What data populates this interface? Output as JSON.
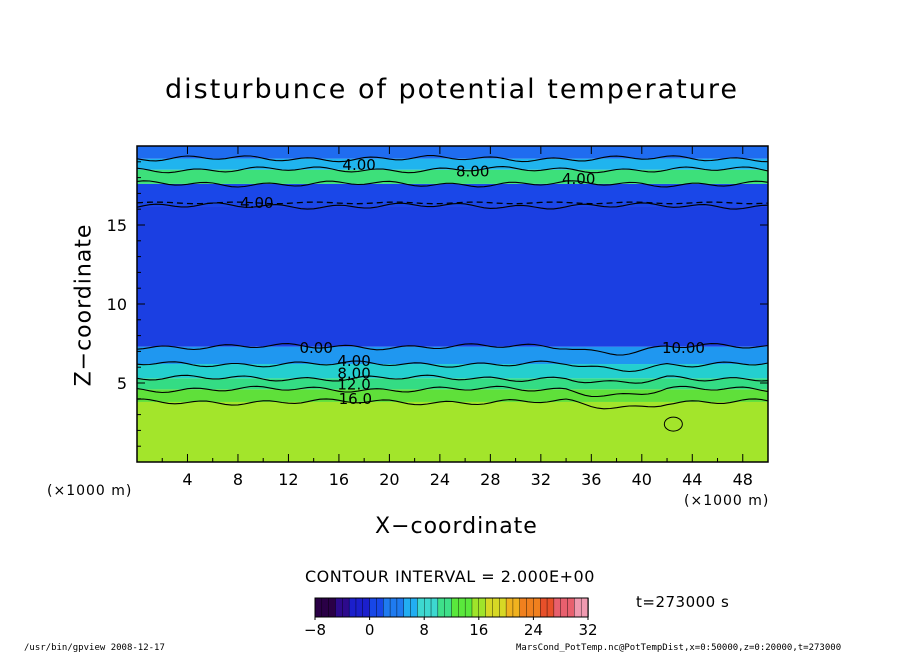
{
  "chart_data": {
    "type": "heatmap",
    "title": "disturbunce of potential temperature",
    "xlabel": "X−coordinate",
    "ylabel": "Z−coordinate",
    "x_unit_label": "(×1000 m)",
    "z_unit_label": "(×1000 m)",
    "xlim": [
      0,
      50
    ],
    "ylim": [
      0,
      20
    ],
    "x_ticks": [
      4,
      8,
      12,
      16,
      20,
      24,
      28,
      32,
      36,
      40,
      44,
      48
    ],
    "y_ticks": [
      5,
      10,
      15
    ],
    "contour_interval_text": "CONTOUR INTERVAL = 2.000E+00",
    "contour_labels": [
      "4.00",
      "8.00",
      "4.00",
      "4.00",
      "0.00",
      "4.00",
      "8.00",
      "12.0",
      "16.0",
      "10.00"
    ],
    "colorbar": {
      "min": -8,
      "max": 32,
      "ticks": [
        "−8",
        "0",
        "8",
        "16",
        "24",
        "32"
      ],
      "colors": [
        "#2a0046",
        "#2d0a8c",
        "#1b1fcc",
        "#1747e8",
        "#1f7bf0",
        "#22aef2",
        "#3dd8d0",
        "#3ee08a",
        "#5ae83c",
        "#9fe42a",
        "#d7d825",
        "#f0b21f",
        "#f0801e",
        "#e8502a",
        "#e8606e",
        "#f09ab0"
      ]
    },
    "layers": [
      {
        "z_range": [
          0,
          3.8
        ],
        "value": 20,
        "color": "#a3e52b"
      },
      {
        "z_range": [
          3.8,
          4.6
        ],
        "value": 16,
        "color": "#5fe03a"
      },
      {
        "z_range": [
          4.6,
          5.3
        ],
        "value": 12,
        "color": "#34dc84"
      },
      {
        "z_range": [
          5.3,
          6.2
        ],
        "value": 8,
        "color": "#24cfcf"
      },
      {
        "z_range": [
          6.2,
          7.3
        ],
        "value": 4,
        "color": "#1f97f0"
      },
      {
        "z_range": [
          7.3,
          16.2
        ],
        "value": -2,
        "color": "#1b3fe2"
      },
      {
        "z_range": [
          16.2,
          17.6
        ],
        "value": 0,
        "color": "#1a47e8"
      },
      {
        "z_range": [
          17.6,
          18.5
        ],
        "value": 8,
        "color": "#3de07a"
      },
      {
        "z_range": [
          18.5,
          19.2
        ],
        "value": 4,
        "color": "#20b4ee"
      },
      {
        "z_range": [
          19.2,
          20
        ],
        "value": 0,
        "color": "#1f6cf0"
      }
    ],
    "time_label": "t=273000 s",
    "footer_left": "/usr/bin/gpview   2008-12-17",
    "footer_right": "MarsCond_PotTemp.nc@PotTempDist,x=0:50000,z=0:20000,t=273000"
  }
}
